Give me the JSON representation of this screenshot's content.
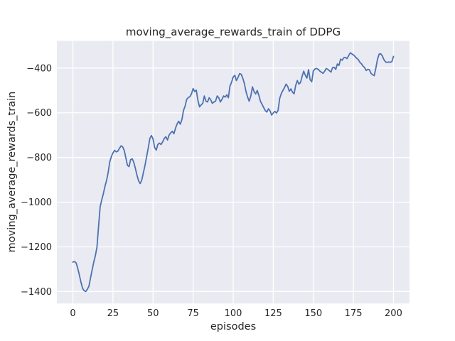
{
  "figure": {
    "background": "#ffffff"
  },
  "chart_data": {
    "type": "line",
    "title": "moving_average_rewards_train of DDPG",
    "xlabel": "episodes",
    "ylabel": "moving_average_rewards_train",
    "legend": null,
    "grid": true,
    "x_start": 0,
    "x_step": 1,
    "xticks": [
      0,
      25,
      50,
      75,
      100,
      125,
      150,
      175,
      200
    ],
    "yticks": [
      -400,
      -600,
      -800,
      -1000,
      -1200,
      -1400
    ],
    "xlim": [
      -10,
      210
    ],
    "ylim": [
      -1453.4,
      -278.6
    ],
    "values": [
      -1268,
      -1266,
      -1272,
      -1295,
      -1326,
      -1357,
      -1385,
      -1396,
      -1400,
      -1390,
      -1376,
      -1340,
      -1303,
      -1268,
      -1240,
      -1201,
      -1110,
      -1020,
      -990,
      -962,
      -930,
      -903,
      -868,
      -820,
      -795,
      -780,
      -768,
      -775,
      -772,
      -760,
      -748,
      -752,
      -768,
      -800,
      -835,
      -841,
      -810,
      -806,
      -822,
      -850,
      -880,
      -905,
      -917,
      -900,
      -868,
      -835,
      -795,
      -758,
      -715,
      -702,
      -718,
      -755,
      -767,
      -742,
      -736,
      -742,
      -730,
      -715,
      -707,
      -722,
      -700,
      -690,
      -683,
      -694,
      -670,
      -650,
      -638,
      -651,
      -630,
      -590,
      -570,
      -540,
      -532,
      -528,
      -515,
      -492,
      -505,
      -499,
      -545,
      -574,
      -565,
      -558,
      -525,
      -548,
      -552,
      -533,
      -542,
      -558,
      -552,
      -548,
      -525,
      -533,
      -552,
      -540,
      -525,
      -530,
      -520,
      -533,
      -480,
      -464,
      -440,
      -432,
      -456,
      -442,
      -425,
      -428,
      -445,
      -470,
      -505,
      -530,
      -548,
      -525,
      -484,
      -505,
      -516,
      -500,
      -522,
      -548,
      -562,
      -576,
      -590,
      -597,
      -582,
      -592,
      -610,
      -601,
      -594,
      -601,
      -590,
      -536,
      -515,
      -500,
      -488,
      -472,
      -482,
      -504,
      -493,
      -508,
      -515,
      -478,
      -456,
      -472,
      -465,
      -438,
      -414,
      -432,
      -445,
      -407,
      -452,
      -461,
      -413,
      -404,
      -402,
      -405,
      -413,
      -418,
      -424,
      -415,
      -402,
      -405,
      -412,
      -418,
      -398,
      -397,
      -406,
      -382,
      -388,
      -360,
      -365,
      -354,
      -352,
      -358,
      -345,
      -332,
      -336,
      -341,
      -348,
      -356,
      -362,
      -374,
      -381,
      -391,
      -398,
      -411,
      -405,
      -408,
      -424,
      -430,
      -434,
      -400,
      -362,
      -338,
      -336,
      -345,
      -362,
      -372,
      -375,
      -373,
      -374,
      -371,
      -348
    ],
    "style": {
      "line_color": "#4c72b0",
      "line_width": 1.8,
      "axes_bg": "#eaeaf2",
      "grid_color": "#ffffff",
      "text_color": "#262626",
      "tick_font_px": 13,
      "legend_position": "none"
    }
  }
}
